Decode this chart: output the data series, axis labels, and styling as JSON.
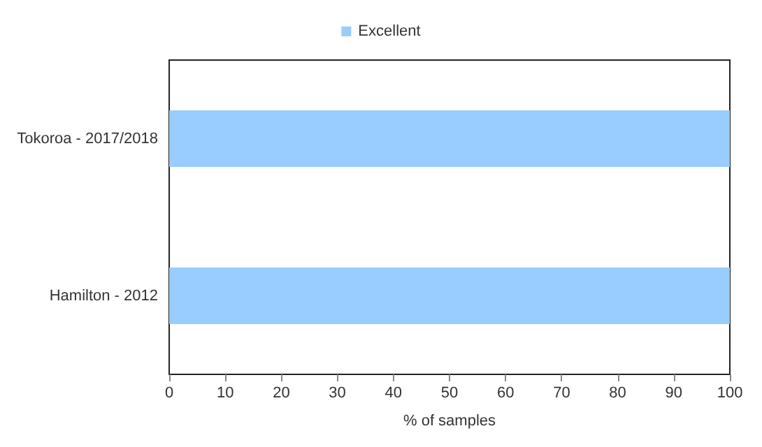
{
  "chart_data": {
    "type": "bar",
    "orientation": "horizontal",
    "categories": [
      "Tokoroa - 2017/2018",
      "Hamilton - 2012"
    ],
    "series": [
      {
        "name": "Excellent",
        "color": "#99ccff",
        "values": [
          100,
          100
        ]
      }
    ],
    "xlabel": "% of samples",
    "xlim": [
      0,
      100
    ],
    "xticks": [
      0,
      10,
      20,
      30,
      40,
      50,
      60,
      70,
      80,
      90,
      100
    ],
    "grid": false,
    "legend": "top"
  }
}
